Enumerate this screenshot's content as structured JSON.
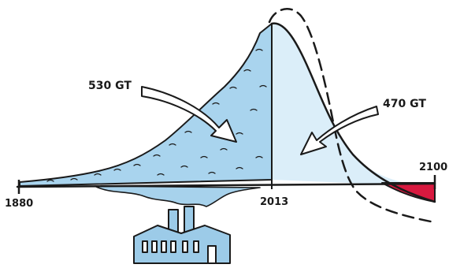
{
  "labels": {
    "past_emissions": "530 GT",
    "future_budget": "470 GT",
    "year_start": "1880",
    "year_now": "2013",
    "year_end": "2100"
  },
  "colors": {
    "past_fill": "#a9d4ee",
    "future_fill": "#dbeef9",
    "negative_fill": "#d8193f",
    "smoke_fill": "#a7d2ec",
    "factory_fill": "#9ccbe8",
    "ink": "#1a1a1a"
  },
  "icons": {
    "factory": "factory-icon",
    "arrow_left": "curved-arrow-icon",
    "arrow_right": "curved-arrow-icon"
  }
}
